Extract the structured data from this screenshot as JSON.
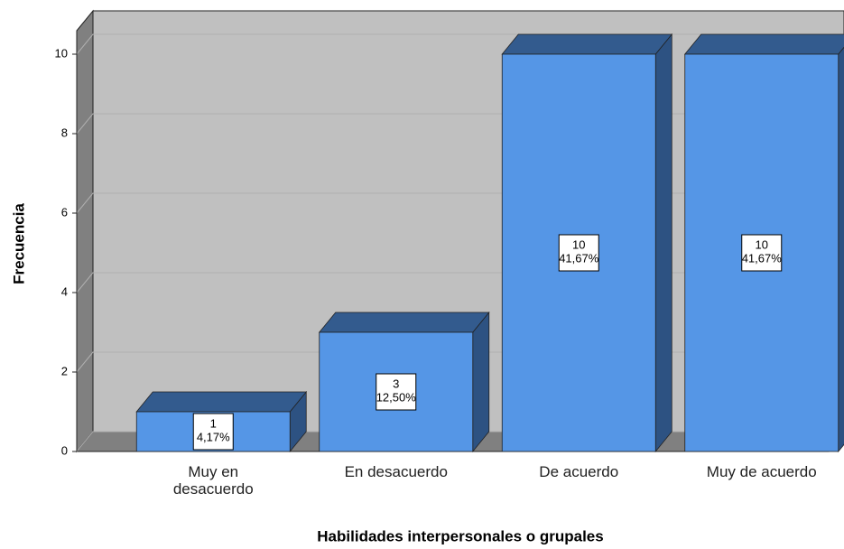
{
  "chart_data": {
    "type": "bar3d",
    "categories": [
      "Muy en desacuerdo",
      "En desacuerdo",
      "De acuerdo",
      "Muy de acuerdo"
    ],
    "values": [
      1,
      3,
      10,
      10
    ],
    "percent_labels": [
      "4,17%",
      "12,50%",
      "41,67%",
      "41,67%"
    ],
    "color": "#5596e6",
    "ylim": [
      0,
      10
    ],
    "yticks": [
      0,
      2,
      4,
      6,
      8,
      10
    ],
    "grid": true,
    "y_label": "Frecuencia",
    "x_label": "Habilidades interpersonales o grupales"
  }
}
